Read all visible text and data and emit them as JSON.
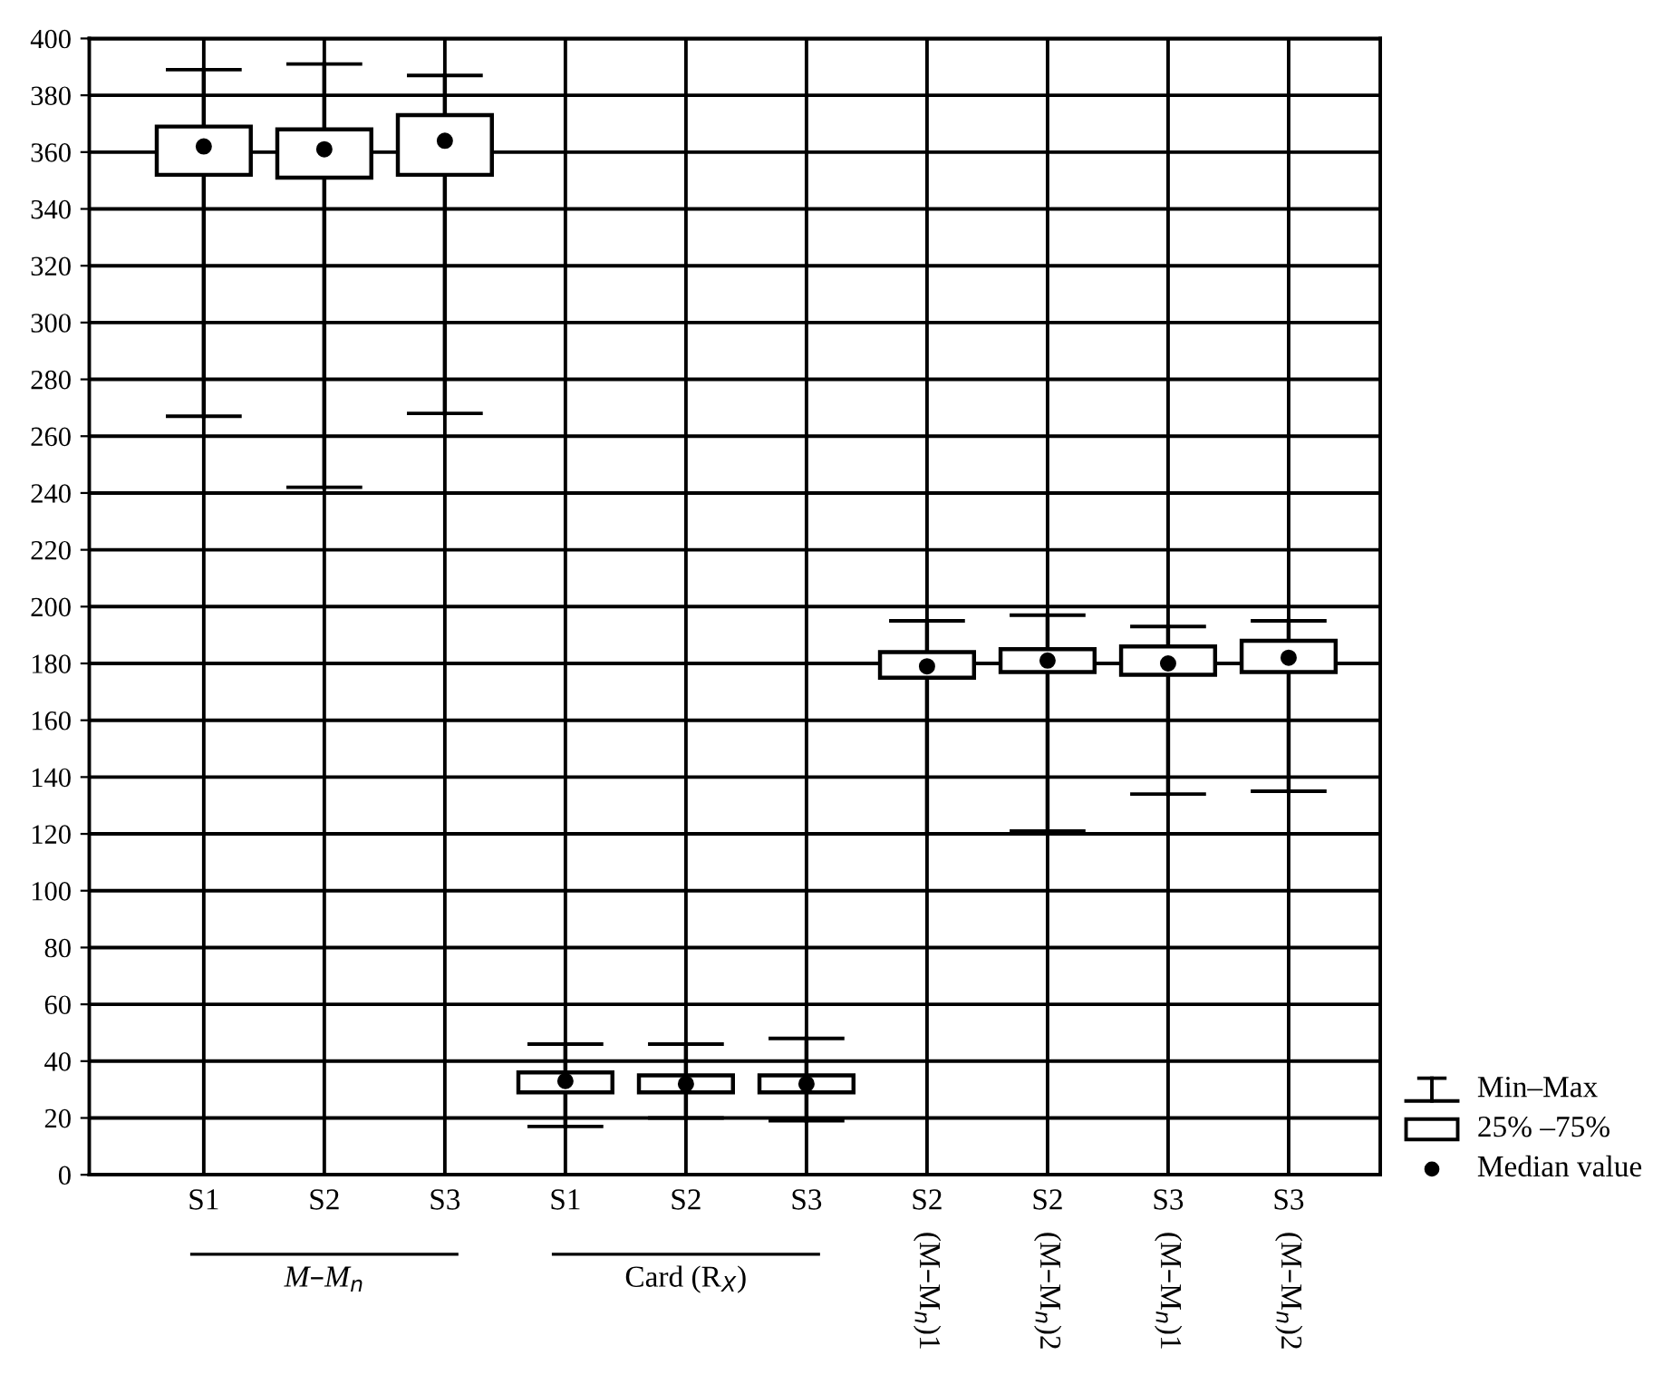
{
  "chart_data": {
    "type": "box",
    "categories": [
      "S1",
      "S2",
      "S3",
      "S1",
      "S2",
      "S3",
      "S2 (M–M$_{n}$)1",
      "S2 (M–M$_{n}$)2",
      "S3 (M–M$_{n}$)1",
      "S3 (M–M$_{n}$)2"
    ],
    "boxes": [
      {
        "low": 267,
        "q1": 352,
        "median": 362,
        "q3": 369,
        "high": 389
      },
      {
        "low": 242,
        "q1": 351,
        "median": 361,
        "q3": 368,
        "high": 391
      },
      {
        "low": 268,
        "q1": 352,
        "median": 364,
        "q3": 373,
        "high": 387
      },
      {
        "low": 17,
        "q1": 29,
        "median": 33,
        "q3": 36,
        "high": 46
      },
      {
        "low": 20,
        "q1": 29,
        "median": 32,
        "q3": 35,
        "high": 46
      },
      {
        "low": 19,
        "q1": 29,
        "median": 32,
        "q3": 35,
        "high": 48
      },
      {
        "low": 120,
        "q1": 175,
        "median": 179,
        "q3": 184,
        "high": 195
      },
      {
        "low": 121,
        "q1": 177,
        "median": 181,
        "q3": 185,
        "high": 197
      },
      {
        "low": 134,
        "q1": 176,
        "median": 180,
        "q3": 186,
        "high": 193
      },
      {
        "low": 135,
        "q1": 177,
        "median": 182,
        "q3": 188,
        "high": 195
      }
    ],
    "ylim": [
      0,
      400
    ],
    "yticks": [
      0,
      20,
      40,
      60,
      80,
      100,
      120,
      140,
      160,
      180,
      200,
      220,
      240,
      260,
      280,
      300,
      320,
      340,
      360,
      380,
      400
    ],
    "grid": true,
    "annotations": [
      "M–M$_{n}$",
      "Card (R$_{X}$)",
      "Min–Max",
      "25% –75%",
      "Median value"
    ]
  }
}
